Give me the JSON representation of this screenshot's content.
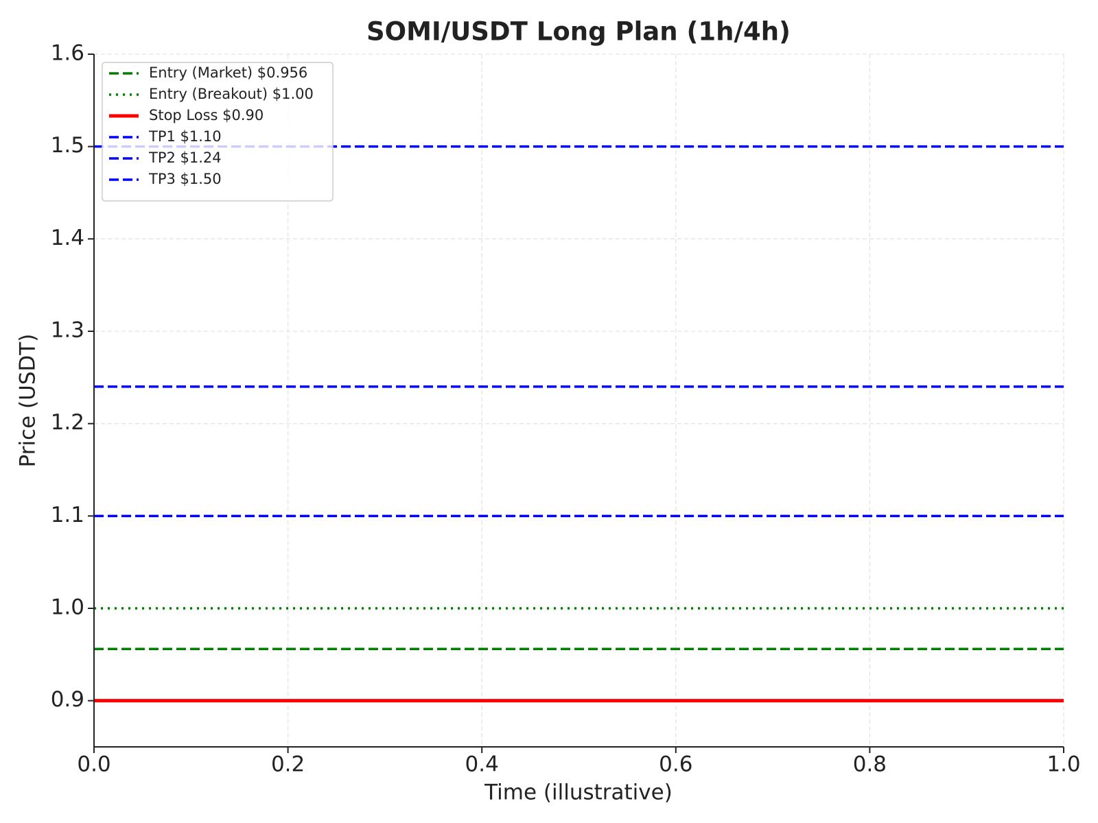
{
  "chart_data": {
    "type": "line",
    "title": "SOMI/USDT Long Plan (1h/4h)",
    "x_label": "Time (illustrative)",
    "y_label": "Price (USDT)",
    "x": [
      0,
      1
    ],
    "series": [
      {
        "name": "Entry (Market) $0.956",
        "color": "#008000",
        "dash": "dashed",
        "values": [
          0.956,
          0.956
        ]
      },
      {
        "name": "Entry (Breakout) $1.00",
        "color": "#008000",
        "dash": "dotted",
        "values": [
          1.0,
          1.0
        ]
      },
      {
        "name": "Stop Loss $0.90",
        "color": "#ff0000",
        "dash": "solid",
        "values": [
          0.9,
          0.9
        ]
      },
      {
        "name": "TP1 $1.10",
        "color": "#0000ff",
        "dash": "dashed",
        "values": [
          1.1,
          1.1
        ]
      },
      {
        "name": "TP2 $1.24",
        "color": "#0000ff",
        "dash": "dashed",
        "values": [
          1.24,
          1.24
        ]
      },
      {
        "name": "TP3 $1.50",
        "color": "#0000ff",
        "dash": "dashed",
        "values": [
          1.5,
          1.5
        ]
      }
    ],
    "xlim": [
      0,
      1
    ],
    "xticks": [
      {
        "value": 0,
        "label": "0.0"
      },
      0.2,
      0.4,
      0.6,
      0.8,
      {
        "value": 1,
        "label": "1.0"
      }
    ],
    "ylim": [
      0.85,
      1.6
    ],
    "yticks": [
      0.9,
      {
        "value": 1,
        "label": "1.0"
      },
      1.1,
      1.2,
      1.3,
      1.4,
      1.5,
      1.6
    ],
    "grid": true,
    "legend": "upper left"
  }
}
